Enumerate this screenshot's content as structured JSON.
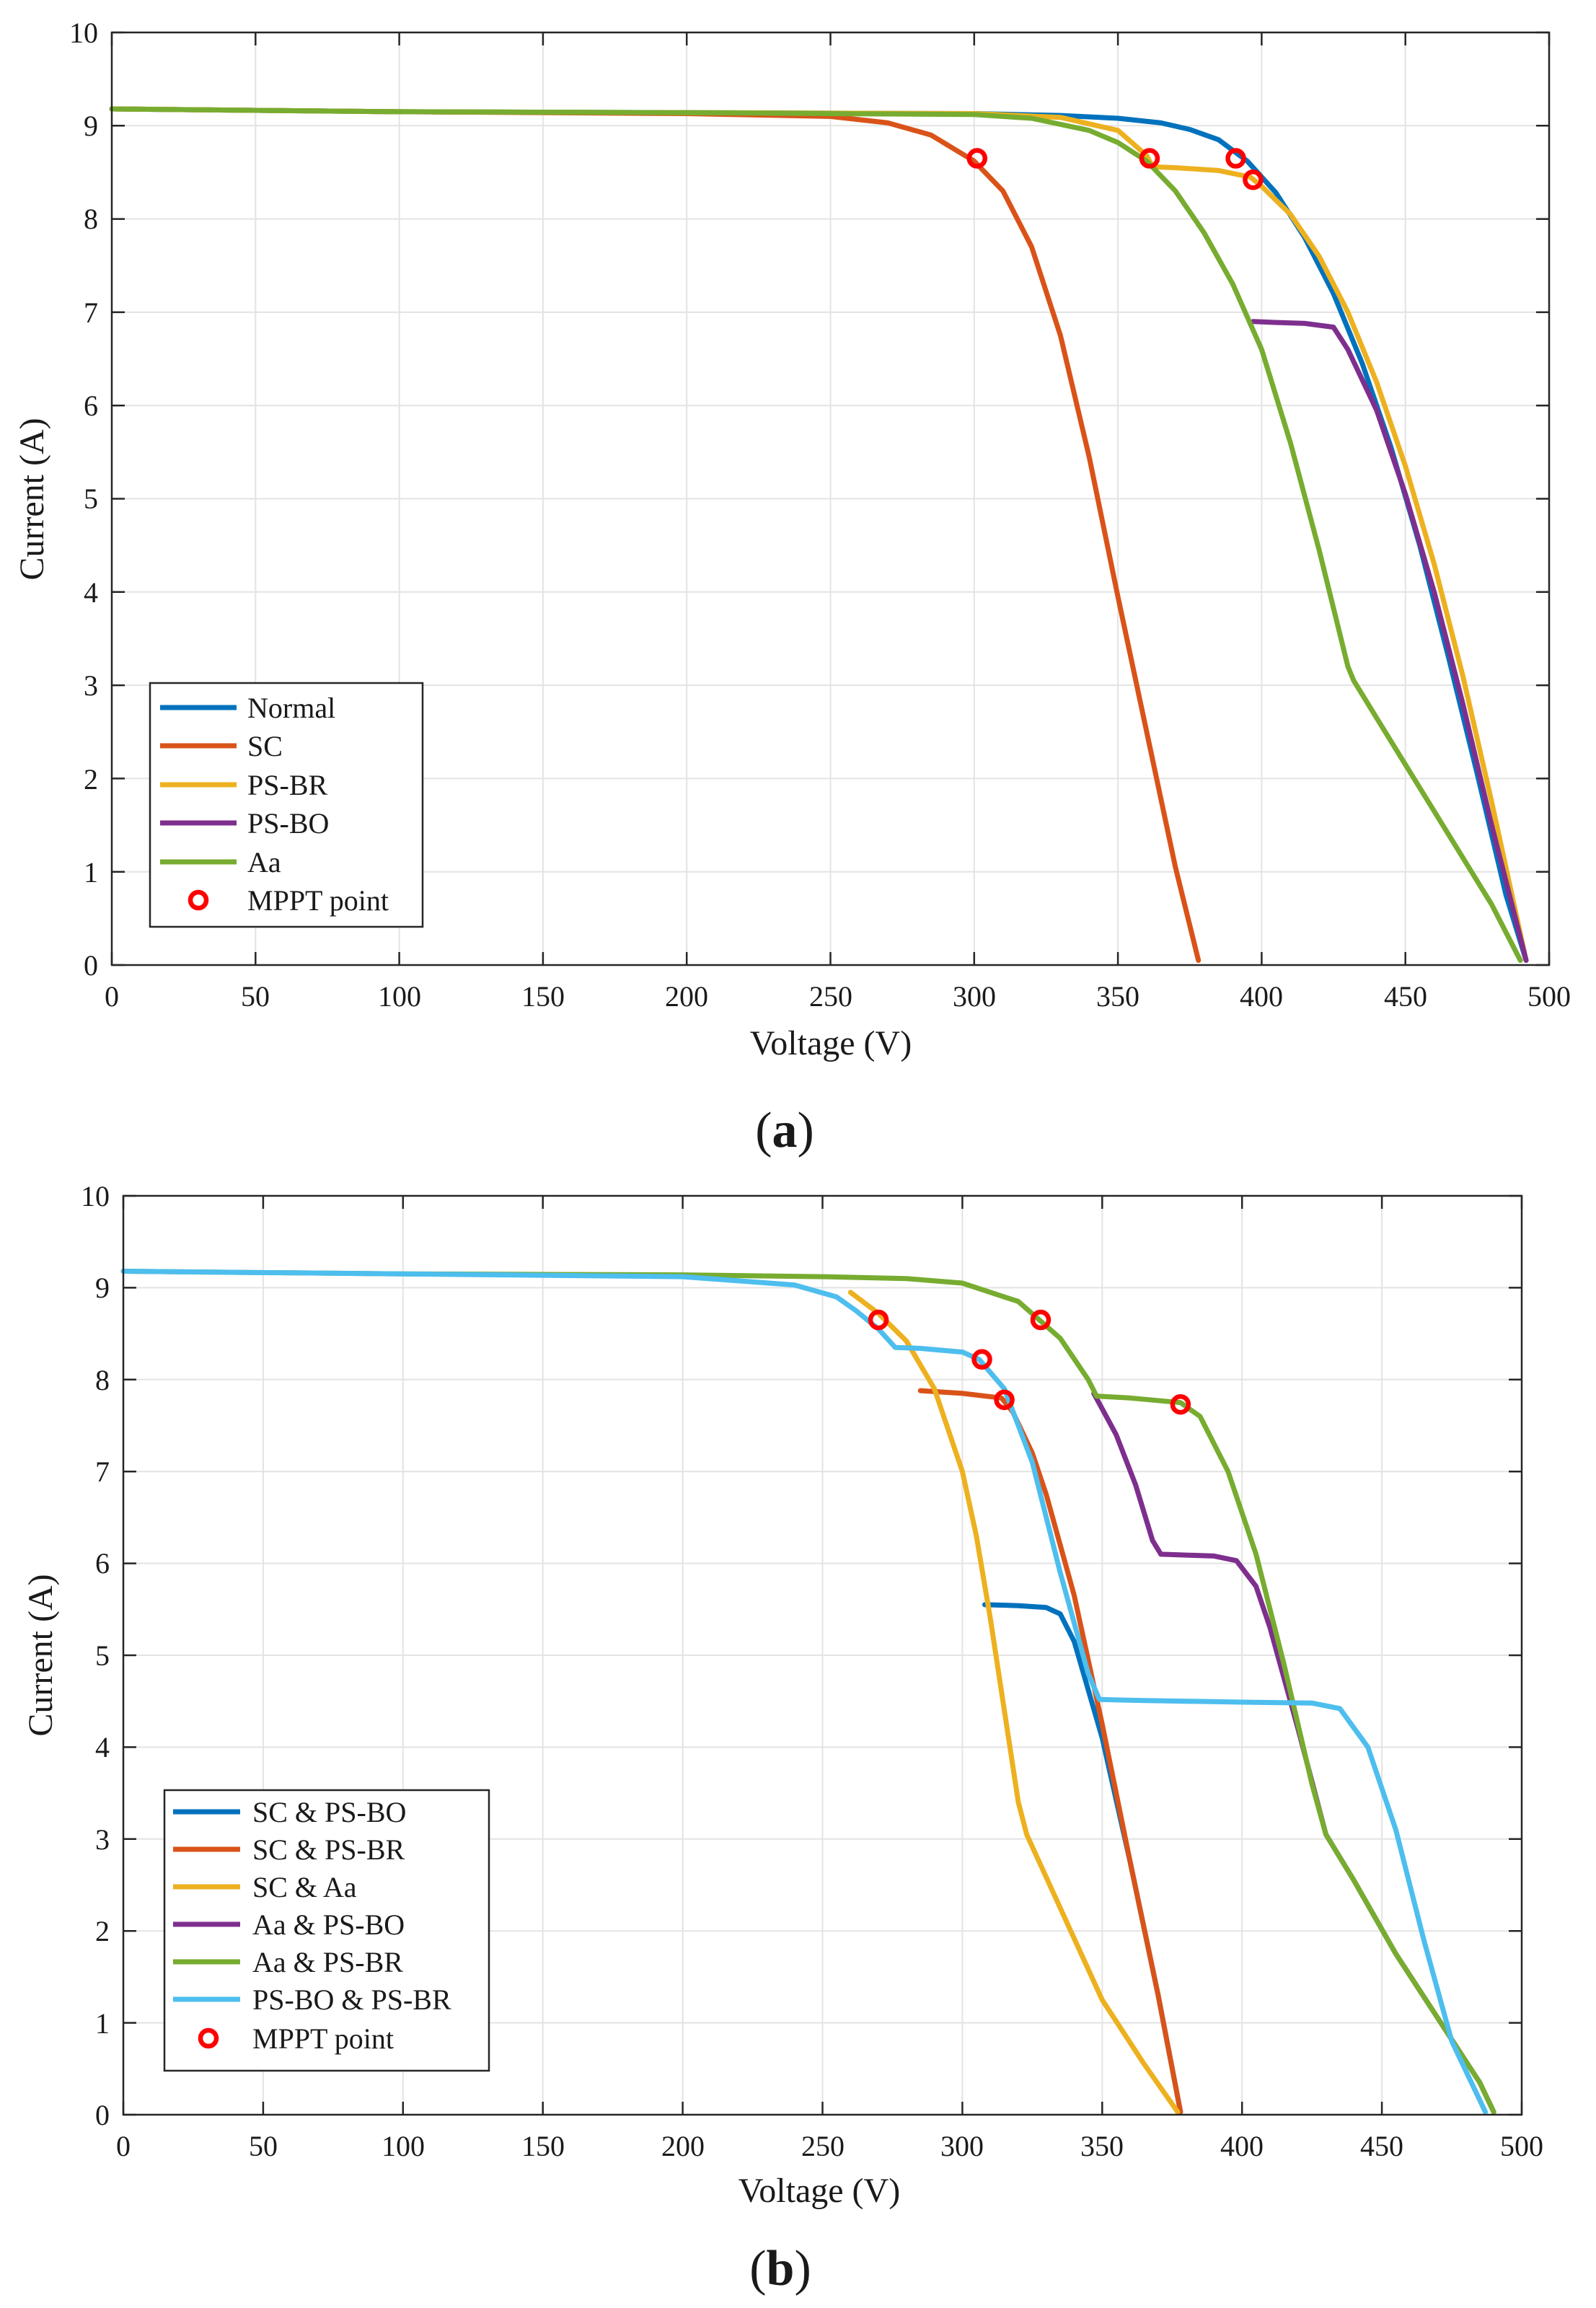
{
  "chart_data": [
    {
      "type": "line",
      "panel_label": "(a)",
      "title": "",
      "xlabel": "Voltage (V)",
      "ylabel": "Current (A)",
      "xlim": [
        0,
        500
      ],
      "ylim": [
        0,
        10
      ],
      "xticks": [
        "0",
        "50",
        "100",
        "150",
        "200",
        "250",
        "300",
        "350",
        "400",
        "450",
        "500"
      ],
      "yticks": [
        "0",
        "1",
        "2",
        "3",
        "4",
        "5",
        "6",
        "7",
        "8",
        "9",
        "10"
      ],
      "grid": true,
      "legend_position": "bottom-left",
      "mppt_label": "MPPT point",
      "colors": {
        "mppt": "#ff0000"
      },
      "series": [
        {
          "name": "Normal",
          "color": "#0072bd",
          "x": [
            0,
            100,
            200,
            300,
            330,
            350,
            365,
            375,
            385,
            395,
            405,
            415,
            425,
            435,
            445,
            455,
            465,
            475,
            485,
            492
          ],
          "y": [
            9.18,
            9.15,
            9.14,
            9.13,
            9.11,
            9.08,
            9.03,
            8.96,
            8.85,
            8.62,
            8.28,
            7.8,
            7.2,
            6.45,
            5.55,
            4.5,
            3.3,
            2.05,
            0.75,
            0.05
          ]
        },
        {
          "name": "SC",
          "color": "#d95319",
          "x": [
            0,
            100,
            200,
            250,
            270,
            285,
            300,
            310,
            320,
            330,
            340,
            350,
            360,
            370,
            378
          ],
          "y": [
            9.18,
            9.15,
            9.13,
            9.1,
            9.03,
            8.9,
            8.62,
            8.3,
            7.7,
            6.75,
            5.45,
            3.95,
            2.5,
            1.05,
            0.05
          ]
        },
        {
          "name": "PS-BR",
          "color": "#edb120",
          "x": [
            0,
            100,
            200,
            300,
            330,
            350,
            360,
            362,
            370,
            385,
            396,
            400,
            410,
            420,
            430,
            440,
            450,
            460,
            470,
            480,
            492
          ],
          "y": [
            9.18,
            9.15,
            9.14,
            9.13,
            9.09,
            8.95,
            8.68,
            8.56,
            8.55,
            8.52,
            8.45,
            8.35,
            8.05,
            7.6,
            7.0,
            6.25,
            5.35,
            4.3,
            3.1,
            1.75,
            0.05
          ]
        },
        {
          "name": "PS-BO",
          "color": "#7e2f8e",
          "x": [
            397,
            405,
            415,
            425,
            430,
            440,
            450,
            460,
            470,
            480,
            492
          ],
          "y": [
            6.9,
            6.89,
            6.88,
            6.84,
            6.6,
            5.95,
            5.05,
            4.0,
            2.8,
            1.5,
            0.05
          ]
        },
        {
          "name": "Aa",
          "color": "#77ac30",
          "x": [
            0,
            100,
            200,
            300,
            320,
            340,
            350,
            360,
            370,
            380,
            390,
            400,
            410,
            420,
            430,
            432,
            440,
            460,
            480,
            490
          ],
          "y": [
            9.18,
            9.15,
            9.14,
            9.12,
            9.08,
            8.95,
            8.82,
            8.62,
            8.3,
            7.85,
            7.3,
            6.6,
            5.6,
            4.45,
            3.2,
            3.05,
            2.65,
            1.65,
            0.65,
            0.05
          ]
        }
      ],
      "mppt_points": [
        [
          301,
          8.65
        ],
        [
          361,
          8.65
        ],
        [
          391,
          8.65
        ],
        [
          397,
          8.42
        ]
      ],
      "legend": [
        "Normal",
        "SC",
        "PS-BR",
        "PS-BO",
        "Aa",
        "MPPT point"
      ]
    },
    {
      "type": "line",
      "panel_label": "(b)",
      "title": "",
      "xlabel": "Voltage (V)",
      "ylabel": "Current (A)",
      "xlim": [
        0,
        500
      ],
      "ylim": [
        0,
        10
      ],
      "xticks": [
        "0",
        "50",
        "100",
        "150",
        "200",
        "250",
        "300",
        "350",
        "400",
        "450",
        "500"
      ],
      "yticks": [
        "0",
        "1",
        "2",
        "3",
        "4",
        "5",
        "6",
        "7",
        "8",
        "9",
        "10"
      ],
      "grid": true,
      "legend_position": "bottom-left",
      "mppt_label": "MPPT point",
      "colors": {
        "mppt": "#ff0000"
      },
      "series": [
        {
          "name": "SC & PS-BO",
          "color": "#0072bd",
          "x": [
            308,
            320,
            330,
            335,
            340,
            350,
            360,
            370,
            378
          ],
          "y": [
            5.55,
            5.54,
            5.52,
            5.45,
            5.15,
            4.1,
            2.75,
            1.3,
            0.03
          ]
        },
        {
          "name": "SC & PS-BR",
          "color": "#d95319",
          "x": [
            285,
            300,
            314,
            318,
            325,
            330,
            340,
            350,
            360,
            370,
            378
          ],
          "y": [
            7.88,
            7.85,
            7.8,
            7.65,
            7.2,
            6.75,
            5.65,
            4.25,
            2.75,
            1.3,
            0.03
          ]
        },
        {
          "name": "SC & Aa",
          "color": "#edb120",
          "x": [
            260,
            270,
            280,
            290,
            300,
            305,
            310,
            315,
            320,
            323,
            335,
            350,
            365,
            377
          ],
          "y": [
            8.95,
            8.72,
            8.42,
            7.9,
            7.0,
            6.3,
            5.4,
            4.4,
            3.4,
            3.05,
            2.25,
            1.25,
            0.55,
            0.03
          ]
        },
        {
          "name": "Aa & PS-BO",
          "color": "#7e2f8e",
          "x": [
            347,
            355,
            362,
            368,
            371,
            380,
            390,
            398,
            405,
            410,
            420,
            430,
            440,
            455,
            470,
            485,
            490
          ],
          "y": [
            7.85,
            7.4,
            6.85,
            6.25,
            6.1,
            6.09,
            6.08,
            6.03,
            5.75,
            5.3,
            4.2,
            3.05,
            2.55,
            1.75,
            1.05,
            0.35,
            0.03
          ]
        },
        {
          "name": "Aa & PS-BR",
          "color": "#77ac30",
          "x": [
            0,
            100,
            200,
            250,
            280,
            300,
            320,
            335,
            345,
            348,
            360,
            378,
            385,
            395,
            405,
            415,
            425,
            430,
            440,
            455,
            470,
            485,
            490
          ],
          "y": [
            9.18,
            9.15,
            9.14,
            9.12,
            9.1,
            9.05,
            8.85,
            8.45,
            8.0,
            7.82,
            7.8,
            7.75,
            7.6,
            7.0,
            6.1,
            4.9,
            3.6,
            3.05,
            2.55,
            1.75,
            1.05,
            0.35,
            0.03
          ]
        },
        {
          "name": "PS-BO & PS-BR",
          "color": "#4dbeee",
          "x": [
            0,
            100,
            200,
            240,
            255,
            262,
            270,
            276,
            285,
            300,
            306,
            315,
            325,
            335,
            345,
            349,
            360,
            400,
            425,
            435,
            445,
            455,
            465,
            475,
            487
          ],
          "y": [
            9.18,
            9.15,
            9.12,
            9.03,
            8.9,
            8.75,
            8.55,
            8.35,
            8.34,
            8.3,
            8.22,
            7.9,
            7.1,
            5.9,
            4.8,
            4.52,
            4.51,
            4.49,
            4.48,
            4.42,
            4.0,
            3.1,
            1.9,
            0.8,
            0.03
          ]
        }
      ],
      "mppt_points": [
        [
          270,
          8.65
        ],
        [
          307,
          8.22
        ],
        [
          315,
          7.78
        ],
        [
          328,
          8.65
        ],
        [
          378,
          7.73
        ]
      ],
      "legend": [
        "SC & PS-BO",
        "SC & PS-BR",
        "SC & Aa",
        "Aa & PS-BO",
        "Aa & PS-BR",
        "PS-BO & PS-BR",
        "MPPT point"
      ]
    }
  ]
}
